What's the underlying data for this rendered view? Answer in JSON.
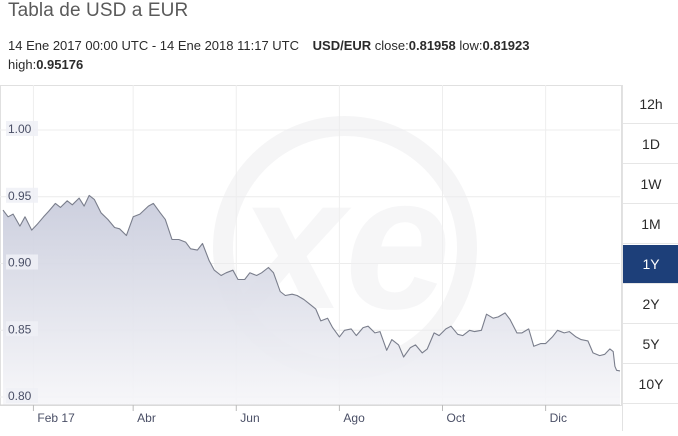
{
  "title": "Tabla de USD a EUR",
  "info": {
    "range": "14 Ene 2017 00:00 UTC - 14 Ene 2018 11:17 UTC",
    "pair": "USD/EUR",
    "close_label": "close:",
    "close_value": "0.81958",
    "low_label": "low:",
    "low_value": "0.81923",
    "high_label": "high:",
    "high_value": "0.95176"
  },
  "range_buttons": [
    "12h",
    "1D",
    "1W",
    "1M",
    "1Y",
    "2Y",
    "5Y",
    "10Y"
  ],
  "active_range": "1Y",
  "colors": {
    "active": "#1d3f79",
    "line": "#7a7e8c",
    "area_top": "#c9ccdc",
    "area_bottom": "#f6f6f9"
  },
  "chart_data": {
    "type": "area",
    "x_format": "YYYY-MM-DD",
    "xlim": [
      "2017-01-14",
      "2018-01-14"
    ],
    "ylim": [
      0.8,
      1.0
    ],
    "y_ticks": [
      "0.80",
      "0.85",
      "0.90",
      "0.95",
      "1.00"
    ],
    "x_ticks": [
      {
        "label": "Feb 17",
        "date": "2017-02-01"
      },
      {
        "label": "Abr",
        "date": "2017-04-01"
      },
      {
        "label": "Jun",
        "date": "2017-06-01"
      },
      {
        "label": "Ago",
        "date": "2017-08-01"
      },
      {
        "label": "Oct",
        "date": "2017-10-01"
      },
      {
        "label": "Dic",
        "date": "2017-12-01"
      }
    ],
    "watermark": "xe",
    "series": [
      {
        "points": [
          [
            "2017-01-14",
            0.94
          ],
          [
            "2017-01-17",
            0.935
          ],
          [
            "2017-01-20",
            0.937
          ],
          [
            "2017-01-24",
            0.928
          ],
          [
            "2017-01-27",
            0.935
          ],
          [
            "2017-01-31",
            0.925
          ],
          [
            "2017-02-03",
            0.929
          ],
          [
            "2017-02-07",
            0.935
          ],
          [
            "2017-02-10",
            0.939
          ],
          [
            "2017-02-14",
            0.945
          ],
          [
            "2017-02-17",
            0.942
          ],
          [
            "2017-02-21",
            0.947
          ],
          [
            "2017-02-24",
            0.944
          ],
          [
            "2017-02-28",
            0.949
          ],
          [
            "2017-03-03",
            0.943
          ],
          [
            "2017-03-06",
            0.951
          ],
          [
            "2017-03-09",
            0.948
          ],
          [
            "2017-03-13",
            0.938
          ],
          [
            "2017-03-17",
            0.933
          ],
          [
            "2017-03-21",
            0.927
          ],
          [
            "2017-03-24",
            0.926
          ],
          [
            "2017-03-28",
            0.921
          ],
          [
            "2017-04-01",
            0.935
          ],
          [
            "2017-04-05",
            0.937
          ],
          [
            "2017-04-10",
            0.943
          ],
          [
            "2017-04-13",
            0.945
          ],
          [
            "2017-04-17",
            0.938
          ],
          [
            "2017-04-20",
            0.933
          ],
          [
            "2017-04-24",
            0.918
          ],
          [
            "2017-04-28",
            0.918
          ],
          [
            "2017-05-02",
            0.916
          ],
          [
            "2017-05-05",
            0.911
          ],
          [
            "2017-05-09",
            0.91
          ],
          [
            "2017-05-12",
            0.915
          ],
          [
            "2017-05-16",
            0.902
          ],
          [
            "2017-05-19",
            0.895
          ],
          [
            "2017-05-23",
            0.891
          ],
          [
            "2017-05-26",
            0.893
          ],
          [
            "2017-05-30",
            0.895
          ],
          [
            "2017-06-02",
            0.888
          ],
          [
            "2017-06-06",
            0.888
          ],
          [
            "2017-06-09",
            0.893
          ],
          [
            "2017-06-13",
            0.891
          ],
          [
            "2017-06-16",
            0.893
          ],
          [
            "2017-06-20",
            0.897
          ],
          [
            "2017-06-23",
            0.893
          ],
          [
            "2017-06-27",
            0.879
          ],
          [
            "2017-06-30",
            0.876
          ],
          [
            "2017-07-04",
            0.877
          ],
          [
            "2017-07-07",
            0.876
          ],
          [
            "2017-07-11",
            0.873
          ],
          [
            "2017-07-14",
            0.87
          ],
          [
            "2017-07-18",
            0.866
          ],
          [
            "2017-07-21",
            0.857
          ],
          [
            "2017-07-25",
            0.859
          ],
          [
            "2017-07-28",
            0.852
          ],
          [
            "2017-08-01",
            0.845
          ],
          [
            "2017-08-04",
            0.85
          ],
          [
            "2017-08-08",
            0.851
          ],
          [
            "2017-08-11",
            0.846
          ],
          [
            "2017-08-15",
            0.852
          ],
          [
            "2017-08-18",
            0.853
          ],
          [
            "2017-08-22",
            0.848
          ],
          [
            "2017-08-25",
            0.849
          ],
          [
            "2017-08-29",
            0.835
          ],
          [
            "2017-09-01",
            0.843
          ],
          [
            "2017-09-05",
            0.839
          ],
          [
            "2017-09-08",
            0.83
          ],
          [
            "2017-09-12",
            0.837
          ],
          [
            "2017-09-15",
            0.839
          ],
          [
            "2017-09-19",
            0.833
          ],
          [
            "2017-09-22",
            0.836
          ],
          [
            "2017-09-26",
            0.848
          ],
          [
            "2017-09-29",
            0.846
          ],
          [
            "2017-10-03",
            0.851
          ],
          [
            "2017-10-06",
            0.853
          ],
          [
            "2017-10-10",
            0.847
          ],
          [
            "2017-10-13",
            0.846
          ],
          [
            "2017-10-17",
            0.85
          ],
          [
            "2017-10-20",
            0.849
          ],
          [
            "2017-10-24",
            0.85
          ],
          [
            "2017-10-27",
            0.862
          ],
          [
            "2017-10-31",
            0.859
          ],
          [
            "2017-11-03",
            0.86
          ],
          [
            "2017-11-07",
            0.863
          ],
          [
            "2017-11-10",
            0.858
          ],
          [
            "2017-11-14",
            0.848
          ],
          [
            "2017-11-17",
            0.848
          ],
          [
            "2017-11-21",
            0.851
          ],
          [
            "2017-11-24",
            0.838
          ],
          [
            "2017-11-28",
            0.84
          ],
          [
            "2017-12-01",
            0.84
          ],
          [
            "2017-12-05",
            0.845
          ],
          [
            "2017-12-08",
            0.85
          ],
          [
            "2017-12-12",
            0.848
          ],
          [
            "2017-12-15",
            0.849
          ],
          [
            "2017-12-19",
            0.845
          ],
          [
            "2017-12-22",
            0.843
          ],
          [
            "2017-12-26",
            0.842
          ],
          [
            "2017-12-29",
            0.833
          ],
          [
            "2018-01-02",
            0.831
          ],
          [
            "2018-01-05",
            0.832
          ],
          [
            "2018-01-08",
            0.836
          ],
          [
            "2018-01-10",
            0.834
          ],
          [
            "2018-01-11",
            0.823
          ],
          [
            "2018-01-12",
            0.82
          ],
          [
            "2018-01-14",
            0.81958
          ]
        ]
      }
    ]
  }
}
